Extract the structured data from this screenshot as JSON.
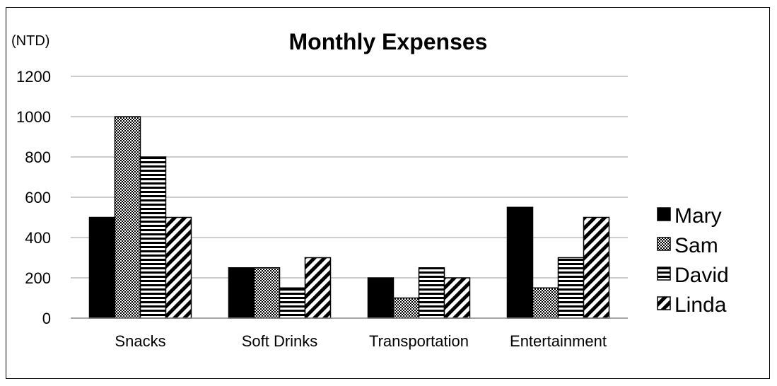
{
  "chart_data": {
    "type": "bar",
    "title": "Monthly Expenses",
    "unit_label": "(NTD)",
    "xlabel": "",
    "ylabel": "",
    "categories": [
      "Snacks",
      "Soft Drinks",
      "Transportation",
      "Entertainment"
    ],
    "series": [
      {
        "name": "Mary",
        "values": [
          500,
          250,
          200,
          550
        ]
      },
      {
        "name": "Sam",
        "values": [
          1000,
          250,
          100,
          150
        ]
      },
      {
        "name": "David",
        "values": [
          800,
          150,
          250,
          300
        ]
      },
      {
        "name": "Linda",
        "values": [
          500,
          300,
          200,
          500
        ]
      }
    ],
    "ylim": [
      0,
      1200
    ],
    "yticks": [
      0,
      200,
      400,
      600,
      800,
      1000,
      1200
    ],
    "grid": true,
    "legend_position": "right",
    "series_patterns": [
      "solid-black",
      "checker",
      "horizontal-stripes",
      "diagonal-stripes"
    ]
  }
}
